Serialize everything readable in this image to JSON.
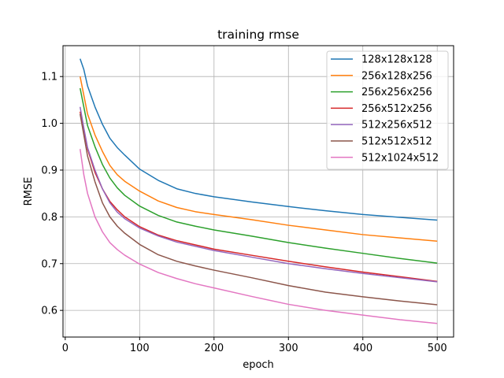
{
  "chart_data": {
    "type": "line",
    "title": "training rmse",
    "xlabel": "epoch",
    "ylabel": "RMSE",
    "xlim": [
      -3,
      522
    ],
    "ylim": [
      0.543,
      1.166
    ],
    "xticks": [
      0,
      100,
      200,
      300,
      400,
      500
    ],
    "yticks": [
      0.6,
      0.7,
      0.8,
      0.9,
      1.0,
      1.1
    ],
    "xtick_labels": [
      "0",
      "100",
      "200",
      "300",
      "400",
      "500"
    ],
    "ytick_labels": [
      "0.6",
      "0.7",
      "0.8",
      "0.9",
      "1.0",
      "1.1"
    ],
    "grid": true,
    "legend_position": "upper right",
    "x": [
      20,
      25,
      30,
      40,
      50,
      60,
      70,
      80,
      100,
      125,
      150,
      175,
      200,
      250,
      300,
      350,
      400,
      450,
      500
    ],
    "series": [
      {
        "name": "128x128x128",
        "color": "#1f77b4",
        "values": [
          1.138,
          1.115,
          1.08,
          1.035,
          0.998,
          0.968,
          0.948,
          0.932,
          0.902,
          0.878,
          0.86,
          0.85,
          0.843,
          0.832,
          0.822,
          0.813,
          0.805,
          0.799,
          0.793
        ]
      },
      {
        "name": "256x128x256",
        "color": "#ff7f0e",
        "values": [
          1.1,
          1.06,
          1.02,
          0.975,
          0.94,
          0.91,
          0.89,
          0.876,
          0.855,
          0.834,
          0.82,
          0.811,
          0.805,
          0.794,
          0.782,
          0.772,
          0.762,
          0.755,
          0.748
        ]
      },
      {
        "name": "256x256x256",
        "color": "#2ca02c",
        "values": [
          1.075,
          1.035,
          0.995,
          0.95,
          0.912,
          0.883,
          0.862,
          0.846,
          0.823,
          0.803,
          0.789,
          0.78,
          0.772,
          0.759,
          0.745,
          0.733,
          0.722,
          0.711,
          0.701
        ]
      },
      {
        "name": "256x512x256",
        "color": "#d62728",
        "values": [
          1.025,
          0.985,
          0.945,
          0.895,
          0.86,
          0.833,
          0.815,
          0.8,
          0.779,
          0.761,
          0.749,
          0.74,
          0.731,
          0.718,
          0.705,
          0.693,
          0.682,
          0.672,
          0.662
        ]
      },
      {
        "name": "512x256x512",
        "color": "#9467bd",
        "values": [
          1.035,
          0.99,
          0.948,
          0.9,
          0.86,
          0.83,
          0.81,
          0.796,
          0.776,
          0.759,
          0.746,
          0.737,
          0.728,
          0.714,
          0.7,
          0.689,
          0.679,
          0.67,
          0.661
        ]
      },
      {
        "name": "512x512x512",
        "color": "#8c564b",
        "values": [
          1.02,
          0.975,
          0.93,
          0.875,
          0.83,
          0.8,
          0.78,
          0.765,
          0.741,
          0.719,
          0.705,
          0.695,
          0.686,
          0.67,
          0.653,
          0.639,
          0.629,
          0.62,
          0.612
        ]
      },
      {
        "name": "512x1024x512",
        "color": "#e377c2",
        "values": [
          0.945,
          0.89,
          0.85,
          0.8,
          0.768,
          0.745,
          0.73,
          0.718,
          0.699,
          0.681,
          0.668,
          0.657,
          0.648,
          0.63,
          0.613,
          0.6,
          0.59,
          0.58,
          0.572
        ]
      }
    ]
  }
}
